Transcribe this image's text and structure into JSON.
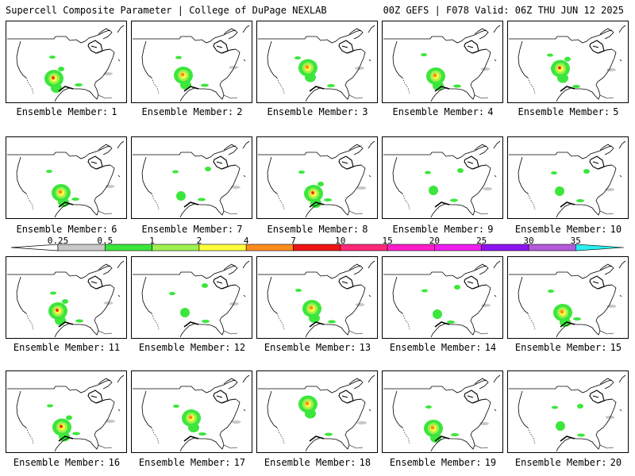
{
  "header": {
    "title": "Supercell Composite Parameter | College of DuPage NEXLAB",
    "run_info": "00Z GEFS | F078 Valid: 06Z THU JUN 12 2025"
  },
  "panel_label_prefix": "Ensemble Member:",
  "members": [
    {
      "number": "1",
      "hotspot": "sw-tx-strong"
    },
    {
      "number": "2",
      "hotspot": "tx-moderate"
    },
    {
      "number": "3",
      "hotspot": "ks-ok-moderate"
    },
    {
      "number": "4",
      "hotspot": "tx-ok-moderate"
    },
    {
      "number": "5",
      "hotspot": "ks-tx-strong"
    },
    {
      "number": "6",
      "hotspot": "tx-moderate"
    },
    {
      "number": "7",
      "hotspot": "tx-weak"
    },
    {
      "number": "8",
      "hotspot": "tx-strong"
    },
    {
      "number": "9",
      "hotspot": "weak"
    },
    {
      "number": "10",
      "hotspot": "weak"
    },
    {
      "number": "11",
      "hotspot": "tx-strong"
    },
    {
      "number": "12",
      "hotspot": "plains-weak"
    },
    {
      "number": "13",
      "hotspot": "ok-moderate"
    },
    {
      "number": "14",
      "hotspot": "weak"
    },
    {
      "number": "15",
      "hotspot": "tx-moderate"
    },
    {
      "number": "16",
      "hotspot": "tx-strong"
    },
    {
      "number": "17",
      "hotspot": "plains-moderate"
    },
    {
      "number": "18",
      "hotspot": "ne-moderate"
    },
    {
      "number": "19",
      "hotspot": "tx-moderate"
    },
    {
      "number": "20",
      "hotspot": "weak"
    }
  ],
  "legend": {
    "labels": [
      "0.25",
      "0.5",
      "1",
      "2",
      "4",
      "7",
      "10",
      "15",
      "20",
      "25",
      "30",
      "35"
    ],
    "colors": [
      "#c8c8c8",
      "#3ce63c",
      "#a0f050",
      "#ffff3c",
      "#ff8c1e",
      "#f01414",
      "#ff2878",
      "#ff1ec8",
      "#f01ef0",
      "#8c14f0",
      "#b45adc",
      "#28f0f0"
    ]
  },
  "colors": {
    "coastline": "#000000",
    "background": "#ffffff"
  }
}
